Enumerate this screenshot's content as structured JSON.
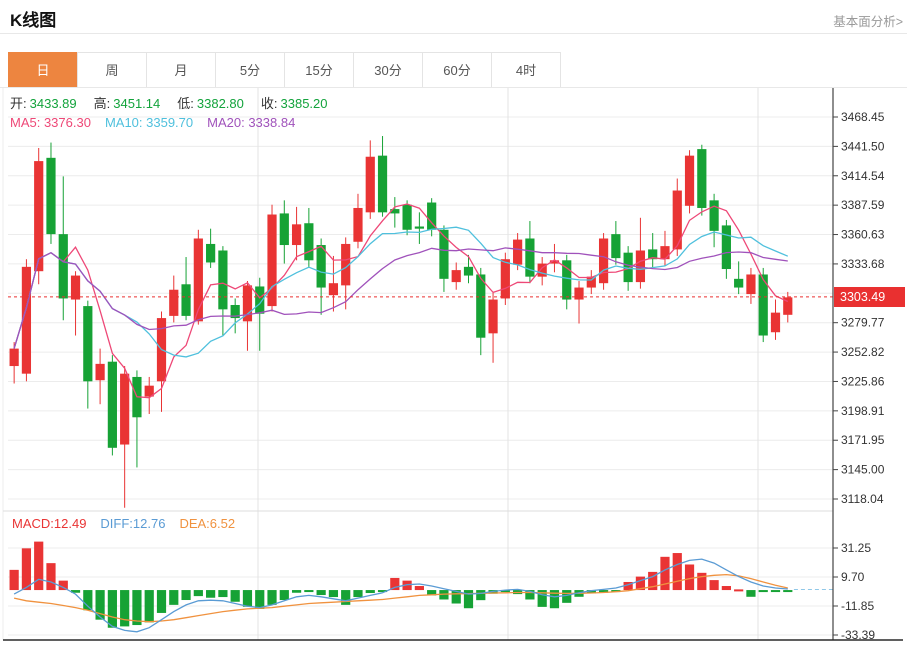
{
  "header": {
    "title": "K线图",
    "link": "基本面分析>"
  },
  "tabs": {
    "items": [
      "日",
      "周",
      "月",
      "5分",
      "15分",
      "30分",
      "60分",
      "4时"
    ],
    "active_index": 0
  },
  "legend": {
    "ohlc": [
      {
        "label": "开:",
        "value": "3433.89"
      },
      {
        "label": "高:",
        "value": "3451.14"
      },
      {
        "label": "低:",
        "value": "3382.80"
      },
      {
        "label": "收:",
        "value": "3385.20"
      }
    ],
    "ma": [
      {
        "text": "MA5: 3376.30",
        "color": "#ee4877"
      },
      {
        "text": "MA10: 3359.70",
        "color": "#4fc0dd"
      },
      {
        "text": "MA20: 3338.84",
        "color": "#a052bb"
      }
    ],
    "macd": [
      {
        "text": "MACD:12.49",
        "color": "#e93434"
      },
      {
        "text": "DIFF:12.76",
        "color": "#5a9bd4"
      },
      {
        "text": "DEA:6.52",
        "color": "#f0923f"
      }
    ]
  },
  "current_price": {
    "value": "3303.49"
  },
  "colors": {
    "up": "#e93434",
    "down": "#16a235",
    "ohlc_value": "#13a33c",
    "ma5": "#ee4877",
    "ma10": "#4fc0dd",
    "ma20": "#a052bb",
    "diff_line": "#5a9bd4",
    "dea_line": "#f0923f",
    "accent": "#ed8540",
    "badge": "#e93030",
    "dotted": "#e93030",
    "grid": "#ececec",
    "vgrid": "#e3e3e3",
    "axis": "#444444",
    "dash_right": "#90c8e8",
    "label": "#333333"
  },
  "chart_data": [
    {
      "type": "candlestick",
      "title": "K线图 日线",
      "y_axis": {
        "ticks": [
          3468.45,
          3441.5,
          3414.54,
          3387.59,
          3360.63,
          3333.68,
          3279.77,
          3252.82,
          3225.86,
          3198.91,
          3171.95,
          3145.0,
          3118.04
        ],
        "grid_extra": [
          3306.73
        ],
        "range": [
          3104,
          3475
        ]
      },
      "current_price": 3303.49,
      "ma_periods": [
        5,
        10,
        20
      ],
      "candles": [
        [
          3240,
          3262,
          3224,
          3256
        ],
        [
          3233,
          3338,
          3226,
          3331
        ],
        [
          3327,
          3440,
          3315,
          3428
        ],
        [
          3431,
          3445,
          3352,
          3361
        ],
        [
          3361,
          3414,
          3282,
          3302
        ],
        [
          3301,
          3327,
          3268,
          3323
        ],
        [
          3295,
          3300,
          3201,
          3226
        ],
        [
          3227,
          3256,
          3205,
          3242
        ],
        [
          3244,
          3250,
          3158,
          3165
        ],
        [
          3168,
          3240,
          3110,
          3233
        ],
        [
          3230,
          3236,
          3147,
          3193
        ],
        [
          3212,
          3230,
          3196,
          3222
        ],
        [
          3226,
          3290,
          3198,
          3284
        ],
        [
          3286,
          3323,
          3280,
          3310
        ],
        [
          3315,
          3340,
          3282,
          3286
        ],
        [
          3281,
          3365,
          3278,
          3357
        ],
        [
          3352,
          3366,
          3330,
          3335
        ],
        [
          3346,
          3350,
          3268,
          3292
        ],
        [
          3296,
          3302,
          3270,
          3284
        ],
        [
          3281,
          3318,
          3254,
          3314
        ],
        [
          3313,
          3321,
          3254,
          3288
        ],
        [
          3295,
          3388,
          3290,
          3379
        ],
        [
          3380,
          3392,
          3334,
          3351
        ],
        [
          3351,
          3386,
          3337,
          3370
        ],
        [
          3371,
          3385,
          3330,
          3337
        ],
        [
          3351,
          3357,
          3287,
          3312
        ],
        [
          3305,
          3341,
          3290,
          3316
        ],
        [
          3314,
          3358,
          3292,
          3352
        ],
        [
          3354,
          3398,
          3348,
          3385
        ],
        [
          3381,
          3447,
          3375,
          3432
        ],
        [
          3433,
          3451,
          3377,
          3381
        ],
        [
          3384,
          3395,
          3367,
          3380
        ],
        [
          3388,
          3392,
          3360,
          3365
        ],
        [
          3368,
          3381,
          3352,
          3366
        ],
        [
          3390,
          3394,
          3359,
          3365
        ],
        [
          3365,
          3369,
          3308,
          3320
        ],
        [
          3317,
          3335,
          3310,
          3328
        ],
        [
          3331,
          3342,
          3316,
          3323
        ],
        [
          3324,
          3330,
          3250,
          3266
        ],
        [
          3270,
          3307,
          3243,
          3301
        ],
        [
          3302,
          3344,
          3296,
          3338
        ],
        [
          3333,
          3362,
          3328,
          3356
        ],
        [
          3357,
          3373,
          3316,
          3322
        ],
        [
          3322,
          3340,
          3314,
          3334
        ],
        [
          3334,
          3352,
          3326,
          3337
        ],
        [
          3337,
          3342,
          3292,
          3301
        ],
        [
          3301,
          3318,
          3279,
          3312
        ],
        [
          3312,
          3328,
          3306,
          3322
        ],
        [
          3316,
          3362,
          3310,
          3357
        ],
        [
          3361,
          3373,
          3333,
          3339
        ],
        [
          3344,
          3350,
          3309,
          3317
        ],
        [
          3317,
          3376,
          3311,
          3346
        ],
        [
          3347,
          3362,
          3330,
          3338
        ],
        [
          3338,
          3364,
          3332,
          3350
        ],
        [
          3347,
          3412,
          3341,
          3401
        ],
        [
          3387,
          3438,
          3380,
          3433
        ],
        [
          3439,
          3443,
          3378,
          3385
        ],
        [
          3392,
          3398,
          3349,
          3364
        ],
        [
          3369,
          3374,
          3320,
          3329
        ],
        [
          3320,
          3336,
          3306,
          3312
        ],
        [
          3306,
          3330,
          3297,
          3324
        ],
        [
          3324,
          3330,
          3262,
          3268
        ],
        [
          3271,
          3301,
          3264,
          3289
        ],
        [
          3287,
          3308,
          3280,
          3303
        ]
      ]
    },
    {
      "type": "bar",
      "title": "MACD",
      "y_axis": {
        "ticks": [
          31.25,
          9.7,
          -11.85,
          -33.39
        ],
        "range": [
          -37,
          57
        ]
      },
      "hist": [
        15,
        31,
        36,
        20,
        7,
        -2,
        -15,
        -22,
        -28,
        -27,
        -26,
        -24,
        -17,
        -11,
        -7.4,
        -4.5,
        -5.7,
        -5.2,
        -8.7,
        -12.4,
        -14,
        -11,
        -7.4,
        -2,
        -0.5,
        -3.7,
        -5.2,
        -11,
        -5.2,
        -2.2,
        -0.7,
        9,
        7,
        3,
        -4,
        -7,
        -10,
        -13.5,
        -7.5,
        -2.7,
        -1.5,
        -3,
        -7,
        -12.5,
        -13.5,
        -9.5,
        -5,
        -2.5,
        -2,
        -1.5,
        6,
        10,
        13.5,
        24.7,
        27.5,
        19,
        12.8,
        7.4,
        3,
        0.5,
        -5,
        -1.5,
        -0.8,
        -0.5
      ],
      "diff": [
        -3,
        2,
        8,
        6,
        2,
        -3,
        -12,
        -20,
        -27,
        -30,
        -31,
        -28,
        -22,
        -16,
        -11,
        -8,
        -7.5,
        -8,
        -10,
        -12,
        -13,
        -11,
        -8,
        -5,
        -4,
        -5,
        -6.5,
        -8,
        -6,
        -4,
        -2,
        2,
        4,
        4.5,
        3,
        1,
        -1,
        -3,
        -2.5,
        -1,
        0,
        0.5,
        -1,
        -3.5,
        -5,
        -4,
        -2,
        -0.5,
        0.5,
        1.5,
        4,
        7,
        10,
        15,
        19,
        22,
        23,
        20,
        15,
        10,
        6,
        3,
        1.5,
        0.8
      ],
      "dea": [
        -6,
        -8,
        -9,
        -10,
        -11.5,
        -13,
        -15,
        -17.5,
        -20,
        -22,
        -23,
        -23.5,
        -23,
        -22,
        -20.5,
        -19,
        -17.5,
        -16,
        -15,
        -14,
        -13.5,
        -13,
        -12,
        -11,
        -10,
        -9.5,
        -9,
        -8.5,
        -8,
        -7.5,
        -7,
        -6,
        -5,
        -4,
        -3.5,
        -3,
        -2.8,
        -2.6,
        -2.4,
        -2.2,
        -2,
        -1.8,
        -1.8,
        -2,
        -2.3,
        -2.5,
        -2.4,
        -2.2,
        -1.8,
        -1.2,
        -0.5,
        1,
        2.5,
        4.5,
        6.5,
        8.5,
        10,
        11,
        11.5,
        10.5,
        8.5,
        6,
        3.5,
        1.5
      ]
    }
  ]
}
